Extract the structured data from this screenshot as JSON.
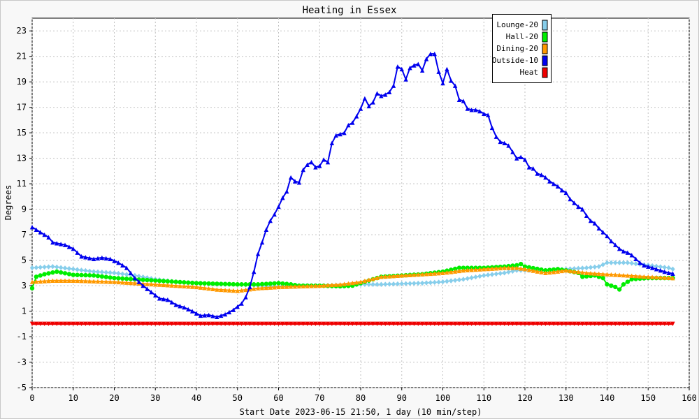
{
  "chart_data": {
    "type": "line",
    "title": "Heating in Essex",
    "xlabel": "Start Date 2023-06-15 21:50, 1 day (10 min/step)",
    "ylabel": "Degrees",
    "xlim": [
      0,
      160
    ],
    "ylim": [
      -5,
      24
    ],
    "xticks": [
      0,
      10,
      20,
      30,
      40,
      50,
      60,
      70,
      80,
      90,
      100,
      110,
      120,
      130,
      140,
      150,
      160
    ],
    "yticks": [
      -5,
      -3,
      -1,
      1,
      3,
      5,
      7,
      9,
      11,
      13,
      15,
      17,
      19,
      21,
      23
    ],
    "grid": true,
    "legend_position": "top-right",
    "series": [
      {
        "name": "Lounge-20",
        "color": "#87ceeb",
        "marker": "diamond",
        "points": [
          [
            0,
            4.4
          ],
          [
            5,
            4.5
          ],
          [
            10,
            4.3
          ],
          [
            15,
            4.1
          ],
          [
            20,
            4.0
          ],
          [
            25,
            3.8
          ],
          [
            30,
            3.5
          ],
          [
            35,
            3.3
          ],
          [
            40,
            3.2
          ],
          [
            45,
            3.1
          ],
          [
            50,
            3.1
          ],
          [
            55,
            3.0
          ],
          [
            60,
            2.95
          ],
          [
            65,
            3.0
          ],
          [
            70,
            3.0
          ],
          [
            75,
            3.05
          ],
          [
            80,
            3.1
          ],
          [
            85,
            3.1
          ],
          [
            90,
            3.15
          ],
          [
            95,
            3.2
          ],
          [
            100,
            3.3
          ],
          [
            105,
            3.5
          ],
          [
            110,
            3.8
          ],
          [
            115,
            4.0
          ],
          [
            118,
            4.2
          ],
          [
            120,
            4.2
          ],
          [
            125,
            4.2
          ],
          [
            130,
            4.3
          ],
          [
            135,
            4.4
          ],
          [
            138,
            4.5
          ],
          [
            140,
            4.8
          ],
          [
            145,
            4.8
          ],
          [
            150,
            4.6
          ],
          [
            155,
            4.4
          ],
          [
            156,
            4.3
          ]
        ]
      },
      {
        "name": "Hall-20",
        "color": "#00ee00",
        "marker": "circle",
        "points": [
          [
            0,
            2.8
          ],
          [
            1,
            3.7
          ],
          [
            3,
            3.9
          ],
          [
            6,
            4.1
          ],
          [
            10,
            3.85
          ],
          [
            15,
            3.8
          ],
          [
            20,
            3.6
          ],
          [
            25,
            3.5
          ],
          [
            30,
            3.4
          ],
          [
            35,
            3.3
          ],
          [
            40,
            3.2
          ],
          [
            45,
            3.15
          ],
          [
            50,
            3.1
          ],
          [
            55,
            3.1
          ],
          [
            60,
            3.2
          ],
          [
            63,
            3.1
          ],
          [
            65,
            3.0
          ],
          [
            70,
            3.0
          ],
          [
            75,
            2.95
          ],
          [
            78,
            3.0
          ],
          [
            80,
            3.2
          ],
          [
            85,
            3.7
          ],
          [
            90,
            3.8
          ],
          [
            95,
            3.9
          ],
          [
            100,
            4.1
          ],
          [
            104,
            4.4
          ],
          [
            110,
            4.4
          ],
          [
            115,
            4.5
          ],
          [
            118,
            4.6
          ],
          [
            119,
            4.7
          ],
          [
            120,
            4.5
          ],
          [
            125,
            4.2
          ],
          [
            128,
            4.3
          ],
          [
            130,
            4.2
          ],
          [
            133,
            4.0
          ],
          [
            134,
            3.7
          ],
          [
            137,
            3.8
          ],
          [
            139,
            3.6
          ],
          [
            140,
            3.1
          ],
          [
            142,
            2.9
          ],
          [
            143,
            2.7
          ],
          [
            144,
            3.1
          ],
          [
            146,
            3.5
          ],
          [
            150,
            3.6
          ],
          [
            156,
            3.6
          ]
        ]
      },
      {
        "name": "Dining-20",
        "color": "#ff9900",
        "marker": "triangle",
        "points": [
          [
            0,
            3.3
          ],
          [
            5,
            3.4
          ],
          [
            10,
            3.4
          ],
          [
            15,
            3.35
          ],
          [
            20,
            3.3
          ],
          [
            25,
            3.2
          ],
          [
            30,
            3.1
          ],
          [
            35,
            3.0
          ],
          [
            40,
            2.9
          ],
          [
            45,
            2.7
          ],
          [
            50,
            2.6
          ],
          [
            55,
            2.8
          ],
          [
            60,
            2.9
          ],
          [
            65,
            2.95
          ],
          [
            70,
            3.0
          ],
          [
            75,
            3.1
          ],
          [
            80,
            3.3
          ],
          [
            85,
            3.7
          ],
          [
            90,
            3.8
          ],
          [
            95,
            3.9
          ],
          [
            100,
            4.0
          ],
          [
            105,
            4.2
          ],
          [
            110,
            4.3
          ],
          [
            115,
            4.4
          ],
          [
            118,
            4.4
          ],
          [
            120,
            4.3
          ],
          [
            125,
            4.0
          ],
          [
            130,
            4.2
          ],
          [
            135,
            4.0
          ],
          [
            140,
            3.9
          ],
          [
            145,
            3.8
          ],
          [
            150,
            3.7
          ],
          [
            156,
            3.6
          ]
        ]
      },
      {
        "name": "Outside-10",
        "color": "#0000ee",
        "marker": "triangle",
        "points": [
          [
            0,
            7.6
          ],
          [
            2,
            7.2
          ],
          [
            4,
            6.8
          ],
          [
            5,
            6.4
          ],
          [
            8,
            6.2
          ],
          [
            10,
            5.9
          ],
          [
            12,
            5.3
          ],
          [
            15,
            5.1
          ],
          [
            17,
            5.2
          ],
          [
            19,
            5.1
          ],
          [
            21,
            4.8
          ],
          [
            23,
            4.4
          ],
          [
            25,
            3.6
          ],
          [
            27,
            3.0
          ],
          [
            29,
            2.5
          ],
          [
            31,
            2.0
          ],
          [
            33,
            1.9
          ],
          [
            35,
            1.5
          ],
          [
            37,
            1.3
          ],
          [
            39,
            1.0
          ],
          [
            41,
            0.65
          ],
          [
            43,
            0.7
          ],
          [
            45,
            0.55
          ],
          [
            47,
            0.75
          ],
          [
            49,
            1.1
          ],
          [
            51,
            1.6
          ],
          [
            52,
            2.1
          ],
          [
            53,
            2.9
          ],
          [
            54,
            4.1
          ],
          [
            55,
            5.5
          ],
          [
            56,
            6.4
          ],
          [
            57,
            7.4
          ],
          [
            58,
            8.1
          ],
          [
            59,
            8.6
          ],
          [
            60,
            9.2
          ],
          [
            61,
            9.9
          ],
          [
            62,
            10.4
          ],
          [
            63,
            11.5
          ],
          [
            64,
            11.2
          ],
          [
            65,
            11.1
          ],
          [
            66,
            12.1
          ],
          [
            67,
            12.5
          ],
          [
            68,
            12.7
          ],
          [
            69,
            12.3
          ],
          [
            70,
            12.4
          ],
          [
            71,
            12.9
          ],
          [
            72,
            12.7
          ],
          [
            73,
            14.2
          ],
          [
            74,
            14.8
          ],
          [
            75,
            14.9
          ],
          [
            76,
            15.0
          ],
          [
            77,
            15.6
          ],
          [
            78,
            15.8
          ],
          [
            79,
            16.3
          ],
          [
            80,
            16.9
          ],
          [
            81,
            17.7
          ],
          [
            82,
            17.1
          ],
          [
            83,
            17.4
          ],
          [
            84,
            18.1
          ],
          [
            85,
            17.9
          ],
          [
            86,
            18.0
          ],
          [
            87,
            18.2
          ],
          [
            88,
            18.7
          ],
          [
            89,
            20.2
          ],
          [
            90,
            20.0
          ],
          [
            91,
            19.2
          ],
          [
            92,
            20.1
          ],
          [
            93,
            20.3
          ],
          [
            94,
            20.4
          ],
          [
            95,
            19.9
          ],
          [
            96,
            20.8
          ],
          [
            97,
            21.2
          ],
          [
            98,
            21.2
          ],
          [
            99,
            19.8
          ],
          [
            100,
            18.9
          ],
          [
            101,
            20.0
          ],
          [
            102,
            19.1
          ],
          [
            103,
            18.7
          ],
          [
            104,
            17.6
          ],
          [
            105,
            17.5
          ],
          [
            106,
            16.9
          ],
          [
            107,
            16.8
          ],
          [
            108,
            16.8
          ],
          [
            109,
            16.7
          ],
          [
            110,
            16.5
          ],
          [
            111,
            16.4
          ],
          [
            112,
            15.4
          ],
          [
            113,
            14.7
          ],
          [
            114,
            14.3
          ],
          [
            115,
            14.2
          ],
          [
            116,
            14.0
          ],
          [
            117,
            13.5
          ],
          [
            118,
            13.0
          ],
          [
            119,
            13.1
          ],
          [
            120,
            12.9
          ],
          [
            121,
            12.3
          ],
          [
            122,
            12.2
          ],
          [
            123,
            11.8
          ],
          [
            124,
            11.7
          ],
          [
            125,
            11.5
          ],
          [
            126,
            11.2
          ],
          [
            127,
            11.0
          ],
          [
            128,
            10.8
          ],
          [
            129,
            10.5
          ],
          [
            130,
            10.3
          ],
          [
            131,
            9.8
          ],
          [
            132,
            9.5
          ],
          [
            133,
            9.2
          ],
          [
            134,
            9.0
          ],
          [
            135,
            8.5
          ],
          [
            136,
            8.1
          ],
          [
            137,
            7.9
          ],
          [
            138,
            7.5
          ],
          [
            139,
            7.2
          ],
          [
            140,
            6.9
          ],
          [
            141,
            6.5
          ],
          [
            142,
            6.2
          ],
          [
            143,
            5.9
          ],
          [
            144,
            5.7
          ],
          [
            145,
            5.6
          ],
          [
            146,
            5.4
          ],
          [
            147,
            5.1
          ],
          [
            148,
            4.8
          ],
          [
            149,
            4.6
          ],
          [
            150,
            4.5
          ],
          [
            151,
            4.4
          ],
          [
            152,
            4.3
          ],
          [
            153,
            4.2
          ],
          [
            154,
            4.1
          ],
          [
            155,
            4.0
          ],
          [
            156,
            3.95
          ]
        ]
      },
      {
        "name": "Heat",
        "color": "#ee0000",
        "marker": "triangle-down",
        "points": [
          [
            0,
            0
          ],
          [
            156,
            0
          ]
        ]
      }
    ]
  }
}
